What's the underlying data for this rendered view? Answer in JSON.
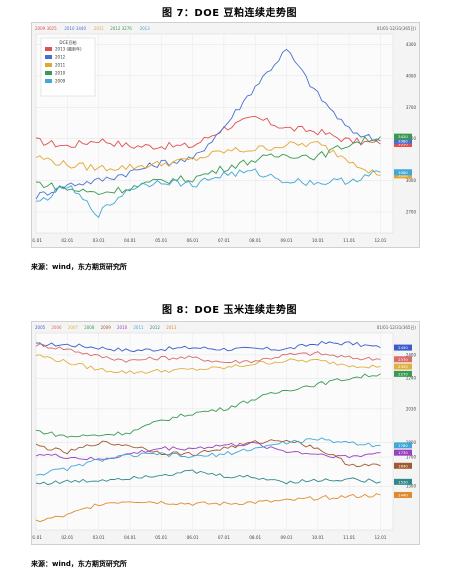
{
  "figures": [
    {
      "title": "图 7：DOE 豆粕连续走势图",
      "source": "来源：wind，东方期货研究所"
    },
    {
      "title": "图 8：DOE 玉米连续走势图",
      "source": "来源：wind，东方期货研究所"
    }
  ],
  "chart_data": [
    {
      "type": "line",
      "header_labels": [
        "2009 3025",
        "2010 3440",
        "2011",
        "2012 3276",
        "2013"
      ],
      "date_range": "01/01-12/31(365日)",
      "legend_title": "DCE豆粕",
      "x": [
        "01.01",
        "02.01",
        "03.01",
        "04.01",
        "05.01",
        "06.01",
        "07.01",
        "08.01",
        "09.01",
        "10.01",
        "11.01",
        "12.01"
      ],
      "y_ticks": [
        4300,
        4000,
        3700,
        3400,
        3000,
        2700
      ],
      "ylim": [
        2500,
        4400
      ],
      "grid": true,
      "legend_position": "top-left",
      "series": [
        {
          "name": "2013 (最新年)",
          "color": "#e05050",
          "values": [
            3380,
            3330,
            3390,
            3330,
            3330,
            3330,
            3500,
            3600,
            3500,
            3470,
            3380,
            3350
          ],
          "end_label": "3350"
        },
        {
          "name": "2012",
          "color": "#4a6fd0",
          "values": [
            2850,
            2960,
            3000,
            3080,
            3170,
            3200,
            3510,
            3900,
            4250,
            3820,
            3480,
            3380
          ],
          "end_label": "3380"
        },
        {
          "name": "2011",
          "color": "#e0a830",
          "values": [
            3230,
            3150,
            3120,
            3130,
            3160,
            3200,
            3280,
            3300,
            3340,
            3350,
            3200,
            3050
          ],
          "end_label": "3050"
        },
        {
          "name": "2010",
          "color": "#3a9a50",
          "values": [
            2980,
            2920,
            2880,
            2930,
            3000,
            3020,
            3120,
            3200,
            3250,
            3230,
            3350,
            3420
          ],
          "end_label": "3420"
        },
        {
          "name": "2009",
          "color": "#40a8d8",
          "values": [
            2780,
            2950,
            2680,
            2930,
            3000,
            2960,
            3060,
            3080,
            3000,
            2980,
            3000,
            3080
          ],
          "end_label": "3080"
        }
      ]
    },
    {
      "type": "line",
      "header_labels": [
        "2005",
        "2006",
        "2007",
        "2008",
        "2009",
        "2010",
        "2011",
        "2012",
        "2013"
      ],
      "date_range": "01/01-12/31(365日)",
      "x": [
        "01.01",
        "02.01",
        "03.01",
        "04.01",
        "05.01",
        "06.01",
        "07.01",
        "08.01",
        "09.01",
        "10.01",
        "11.01",
        "12.01"
      ],
      "y_ticks": [
        2400,
        2240,
        2030,
        1800,
        1700,
        1500
      ],
      "ylim": [
        1200,
        2550
      ],
      "grid": true,
      "series": [
        {
          "name": "2013",
          "color": "#3b5bd0",
          "values": [
            2470,
            2470,
            2450,
            2430,
            2440,
            2450,
            2440,
            2440,
            2440,
            2480,
            2480,
            2450
          ],
          "end_label": "2450"
        },
        {
          "name": "2012",
          "color": "#d96b6b",
          "values": [
            2470,
            2440,
            2390,
            2360,
            2380,
            2380,
            2350,
            2360,
            2400,
            2410,
            2380,
            2370
          ],
          "end_label": "2370"
        },
        {
          "name": "2011",
          "color": "#e0b040",
          "values": [
            2400,
            2350,
            2300,
            2280,
            2290,
            2300,
            2310,
            2340,
            2360,
            2360,
            2330,
            2320
          ],
          "end_label": "2320"
        },
        {
          "name": "2010",
          "color": "#3a9a50",
          "values": [
            1880,
            1840,
            1850,
            1870,
            1950,
            2000,
            2030,
            2100,
            2160,
            2200,
            2240,
            2270
          ],
          "end_label": "2270"
        },
        {
          "name": "2009",
          "color": "#a05a30",
          "values": [
            1780,
            1730,
            1800,
            1780,
            1730,
            1720,
            1760,
            1800,
            1820,
            1760,
            1650,
            1640
          ],
          "end_label": "1640"
        },
        {
          "name": "2008",
          "color": "#9a40c0",
          "values": [
            1720,
            1700,
            1680,
            1720,
            1760,
            1760,
            1780,
            1790,
            1740,
            1720,
            1700,
            1730
          ],
          "end_label": "1730"
        },
        {
          "name": "2007",
          "color": "#40a8d8",
          "values": [
            1580,
            1620,
            1680,
            1710,
            1720,
            1700,
            1720,
            1760,
            1800,
            1820,
            1800,
            1780
          ],
          "end_label": "1780"
        },
        {
          "name": "2006",
          "color": "#2e8a8a",
          "values": [
            1520,
            1530,
            1540,
            1560,
            1580,
            1600,
            1570,
            1560,
            1530,
            1540,
            1550,
            1530
          ],
          "end_label": "1530"
        },
        {
          "name": "2005",
          "color": "#e08a30",
          "values": [
            1260,
            1300,
            1380,
            1400,
            1390,
            1380,
            1380,
            1390,
            1400,
            1420,
            1430,
            1440
          ],
          "end_label": "1440"
        }
      ]
    }
  ]
}
